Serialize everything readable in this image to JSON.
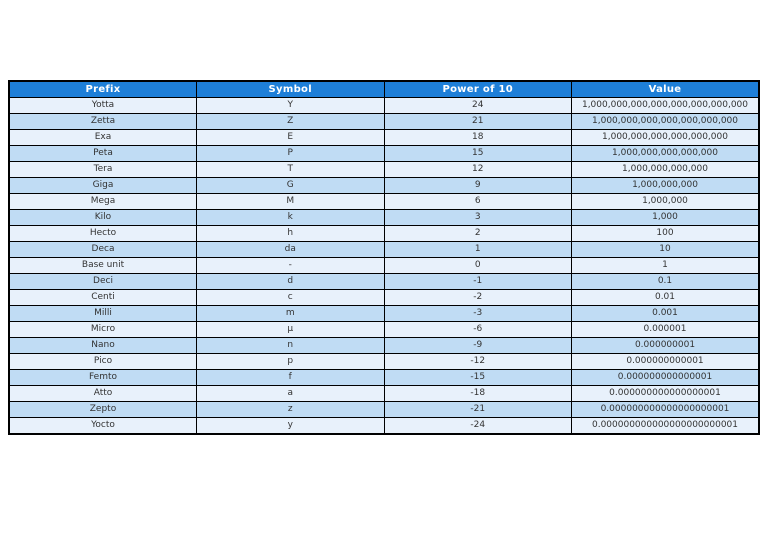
{
  "table": {
    "columns": [
      "Prefix",
      "Symbol",
      "Power of 10",
      "Value"
    ],
    "rows": [
      [
        "Yotta",
        "Y",
        "24",
        "1,000,000,000,000,000,000,000,000"
      ],
      [
        "Zetta",
        "Z",
        "21",
        "1,000,000,000,000,000,000,000"
      ],
      [
        "Exa",
        "E",
        "18",
        "1,000,000,000,000,000,000"
      ],
      [
        "Peta",
        "P",
        "15",
        "1,000,000,000,000,000"
      ],
      [
        "Tera",
        "T",
        "12",
        "1,000,000,000,000"
      ],
      [
        "Giga",
        "G",
        "9",
        "1,000,000,000"
      ],
      [
        "Mega",
        "M",
        "6",
        "1,000,000"
      ],
      [
        "Kilo",
        "k",
        "3",
        "1,000"
      ],
      [
        "Hecto",
        "h",
        "2",
        "100"
      ],
      [
        "Deca",
        "da",
        "1",
        "10"
      ],
      [
        "Base unit",
        "-",
        "0",
        "1"
      ],
      [
        "Deci",
        "d",
        "-1",
        "0.1"
      ],
      [
        "Centi",
        "c",
        "-2",
        "0.01"
      ],
      [
        "Milli",
        "m",
        "-3",
        "0.001"
      ],
      [
        "Micro",
        "µ",
        "-6",
        "0.000001"
      ],
      [
        "Nano",
        "n",
        "-9",
        "0.000000001"
      ],
      [
        "Pico",
        "p",
        "-12",
        "0.000000000001"
      ],
      [
        "Femto",
        "f",
        "-15",
        "0.000000000000001"
      ],
      [
        "Atto",
        "a",
        "-18",
        "0.000000000000000001"
      ],
      [
        "Zepto",
        "z",
        "-21",
        "0.000000000000000000001"
      ],
      [
        "Yocto",
        "y",
        "-24",
        "0.000000000000000000000001"
      ]
    ]
  },
  "colors": {
    "header_bg": "#1e7fd8",
    "row_light": "#e8f1fb",
    "row_dark": "#c0dcf4",
    "border": "#000000",
    "header_text": "#ffffff",
    "body_text": "#333333"
  }
}
